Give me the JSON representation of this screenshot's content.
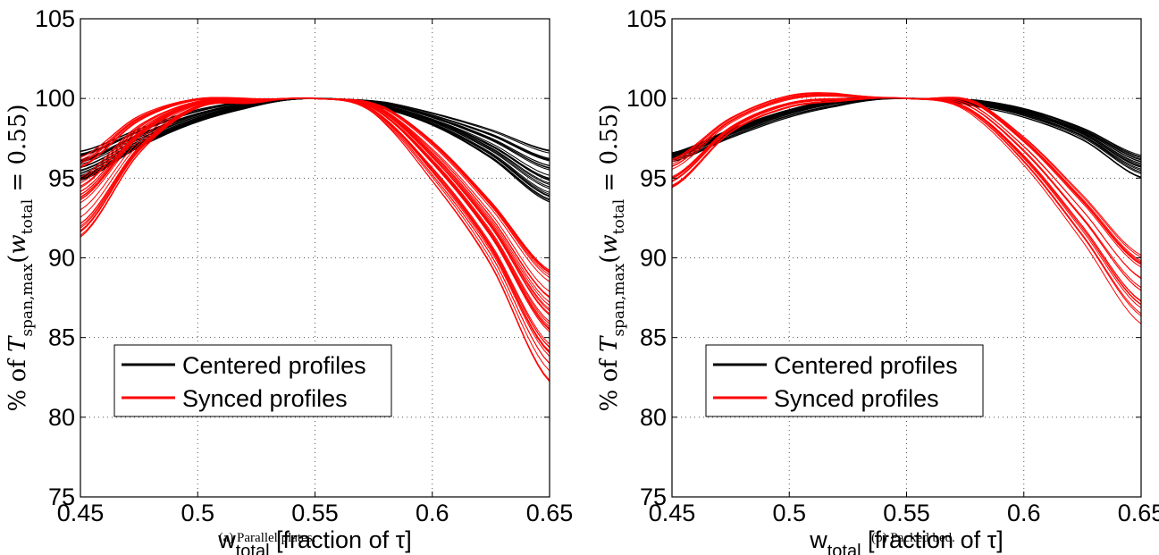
{
  "chart_data": [
    {
      "type": "line",
      "caption": "(a)  Parallel plates.",
      "xlabel_main": "w",
      "xlabel_sub": "total",
      "xlabel_rest": " [fraction of τ]",
      "ylabel_pre": "% of ",
      "ylabel_T": "T",
      "ylabel_Tsub": "span,max",
      "ylabel_paren": "(",
      "ylabel_w": "w",
      "ylabel_wsub": "total",
      "ylabel_post": " = 0.55)",
      "xlim": [
        0.45,
        0.65
      ],
      "ylim": [
        75,
        105
      ],
      "xticks": [
        0.45,
        0.5,
        0.55,
        0.6,
        0.65
      ],
      "xtick_labels": [
        "0.45",
        "0.5",
        "0.55",
        "0.6",
        "0.65"
      ],
      "yticks": [
        75,
        80,
        85,
        90,
        95,
        100,
        105
      ],
      "ytick_labels": [
        "75",
        "80",
        "85",
        "90",
        "95",
        "100",
        "105"
      ],
      "grid": true,
      "legend_position": "bottom-left",
      "series": [
        {
          "name": "Centered profiles",
          "color": "#000000",
          "x": [
            0.45,
            0.475,
            0.5,
            0.525,
            0.55,
            0.575,
            0.6,
            0.625,
            0.65
          ],
          "y": [
            95.7,
            97.5,
            98.9,
            99.7,
            100,
            99.7,
            98.7,
            97.2,
            95.3
          ],
          "y_low": [
            94.8,
            96.9,
            98.5,
            99.5,
            100,
            99.5,
            98.3,
            96.2,
            93.4
          ],
          "y_high": [
            96.7,
            98.1,
            99.3,
            99.9,
            100,
            99.9,
            99.1,
            98.1,
            96.8
          ],
          "count": 30
        },
        {
          "name": "Synced profiles",
          "color": "#ff0000",
          "x": [
            0.45,
            0.475,
            0.5,
            0.525,
            0.55,
            0.575,
            0.6,
            0.625,
            0.65
          ],
          "y": [
            94.5,
            98.3,
            99.8,
            99.9,
            100,
            99.4,
            96.2,
            91.8,
            87.0
          ],
          "y_low": [
            91.2,
            96.5,
            99.4,
            99.7,
            100,
            99.0,
            94.8,
            89.5,
            82.2
          ],
          "y_high": [
            96.5,
            99.0,
            100.0,
            100.0,
            100,
            99.8,
            97.5,
            93.8,
            89.7
          ],
          "count": 35
        }
      ]
    },
    {
      "type": "line",
      "caption": "(b)  Packed bed.",
      "xlabel_main": "w",
      "xlabel_sub": "total",
      "xlabel_rest": " [fraction of τ]",
      "ylabel_pre": "% of ",
      "ylabel_T": "T",
      "ylabel_Tsub": "span,max",
      "ylabel_paren": "(",
      "ylabel_w": "w",
      "ylabel_wsub": "total",
      "ylabel_post": " = 0.55)",
      "xlim": [
        0.45,
        0.65
      ],
      "ylim": [
        75,
        105
      ],
      "xticks": [
        0.45,
        0.5,
        0.55,
        0.6,
        0.65
      ],
      "xtick_labels": [
        "0.45",
        "0.5",
        "0.55",
        "0.6",
        "0.65"
      ],
      "yticks": [
        75,
        80,
        85,
        90,
        95,
        100,
        105
      ],
      "ytick_labels": [
        "75",
        "80",
        "85",
        "90",
        "95",
        "100",
        "105"
      ],
      "grid": true,
      "legend_position": "bottom-left",
      "series": [
        {
          "name": "Centered profiles",
          "color": "#000000",
          "x": [
            0.45,
            0.475,
            0.5,
            0.525,
            0.55,
            0.575,
            0.6,
            0.625,
            0.65
          ],
          "y": [
            96.3,
            97.8,
            99.0,
            99.8,
            100,
            99.8,
            99.0,
            97.8,
            95.8
          ],
          "y_low": [
            96.0,
            97.5,
            98.8,
            99.6,
            100,
            99.6,
            98.8,
            97.4,
            95.0
          ],
          "y_high": [
            96.6,
            98.1,
            99.3,
            100.1,
            100,
            100.0,
            99.4,
            98.2,
            96.5
          ],
          "count": 20
        },
        {
          "name": "Synced profiles",
          "color": "#ff0000",
          "x": [
            0.45,
            0.475,
            0.5,
            0.525,
            0.55,
            0.575,
            0.6,
            0.625,
            0.65
          ],
          "y": [
            95.5,
            98.3,
            99.8,
            100.0,
            100,
            99.5,
            96.8,
            92.5,
            88.0
          ],
          "y_low": [
            94.3,
            97.8,
            99.4,
            99.8,
            100,
            99.2,
            95.8,
            91.0,
            85.8
          ],
          "y_high": [
            96.2,
            98.8,
            100.2,
            100.3,
            100,
            100.2,
            97.8,
            94.3,
            90.7
          ],
          "count": 20
        }
      ]
    }
  ]
}
